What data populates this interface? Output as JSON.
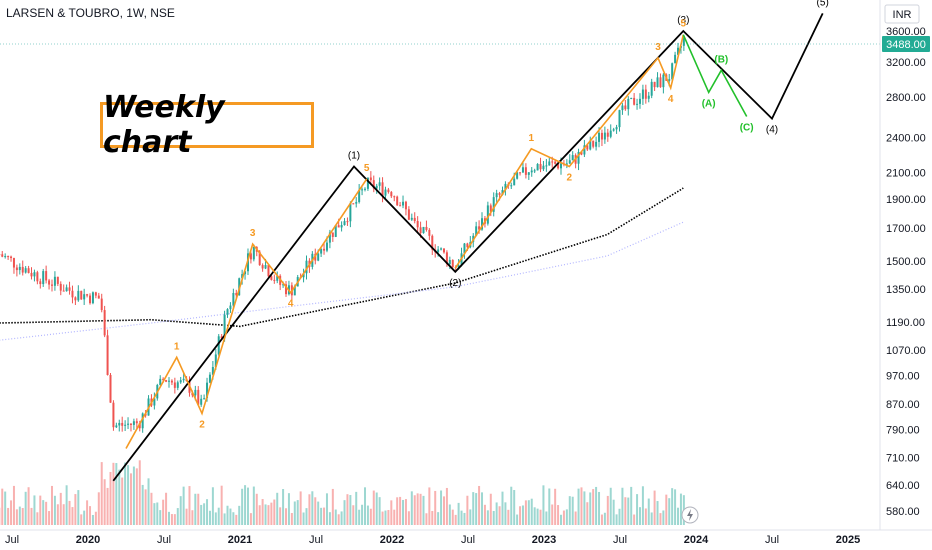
{
  "header": {
    "title": "LARSEN & TOUBRO, 1W, NSE"
  },
  "annotation": {
    "text": "Weekly chart"
  },
  "price_axis": {
    "currency_badge": "INR",
    "current_price_label": "3488.00",
    "tick_labels": [
      "3600.00",
      "3200.00",
      "2800.00",
      "2400.00",
      "2100.00",
      "1900.00",
      "1700.00",
      "1500.00",
      "1350.00",
      "1190.00",
      "1070.00",
      "970.00",
      "870.00",
      "790.00",
      "710.00",
      "640.00",
      "580.00"
    ]
  },
  "time_axis": {
    "tick_labels": [
      "Jul",
      "2020",
      "Jul",
      "2021",
      "Jul",
      "2022",
      "Jul",
      "2023",
      "Jul",
      "2024",
      "Jul",
      "2025"
    ]
  },
  "wave_labels": {
    "primary": [
      "(1)",
      "(2)",
      "(3)",
      "(4)",
      "(5)"
    ],
    "minor": [
      "1",
      "2",
      "3",
      "4",
      "5",
      "1",
      "2",
      "3",
      "4",
      "5"
    ],
    "corrective": [
      "(A)",
      "(B)",
      "(C)"
    ]
  },
  "colors": {
    "bull": "#26a69a",
    "bear": "#ef5350",
    "wave_primary": "#000000",
    "wave_minor": "#f59a23",
    "wave_corrective": "#22c02b",
    "ma_long": "#000000",
    "ma_slow": "#b2b5ff",
    "price_badge": "#22ab94"
  },
  "chart_data": {
    "type": "candlestick",
    "symbol": "LARSEN & TOUBRO",
    "interval": "1W",
    "exchange": "NSE",
    "scale": "log",
    "ylim": [
      560,
      3900
    ],
    "last_price": 3488.0,
    "price_anchors": [
      {
        "date": "2019-06",
        "price": 1540
      },
      {
        "date": "2019-09",
        "price": 1420
      },
      {
        "date": "2019-12",
        "price": 1330
      },
      {
        "date": "2020-02",
        "price": 1300
      },
      {
        "date": "2020-03",
        "price": 800
      },
      {
        "date": "2020-05",
        "price": 810
      },
      {
        "date": "2020-07",
        "price": 960
      },
      {
        "date": "2020-09",
        "price": 930
      },
      {
        "date": "2020-10",
        "price": 860
      },
      {
        "date": "2020-12",
        "price": 1250
      },
      {
        "date": "2021-02",
        "price": 1580
      },
      {
        "date": "2021-04",
        "price": 1380
      },
      {
        "date": "2021-05",
        "price": 1340
      },
      {
        "date": "2021-08",
        "price": 1650
      },
      {
        "date": "2021-10",
        "price": 1850
      },
      {
        "date": "2021-11",
        "price": 2010
      },
      {
        "date": "2022-01",
        "price": 1960
      },
      {
        "date": "2022-03",
        "price": 1700
      },
      {
        "date": "2022-06",
        "price": 1470
      },
      {
        "date": "2022-09",
        "price": 1880
      },
      {
        "date": "2022-12",
        "price": 2150
      },
      {
        "date": "2023-03",
        "price": 2180
      },
      {
        "date": "2023-05",
        "price": 2350
      },
      {
        "date": "2023-08",
        "price": 2750
      },
      {
        "date": "2023-10",
        "price": 2950
      },
      {
        "date": "2023-11",
        "price": 3050
      },
      {
        "date": "2023-12",
        "price": 3488
      }
    ],
    "moving_averages": [
      {
        "style": "dotted-black",
        "points": [
          {
            "date": "2019-06",
            "price": 1185
          },
          {
            "date": "2020-06",
            "price": 1200
          },
          {
            "date": "2021-01",
            "price": 1170
          },
          {
            "date": "2022-06",
            "price": 1380
          },
          {
            "date": "2023-06",
            "price": 1660
          },
          {
            "date": "2023-12",
            "price": 1980
          }
        ]
      },
      {
        "style": "dotted-lavender",
        "points": [
          {
            "date": "2019-06",
            "price": 1110
          },
          {
            "date": "2020-06",
            "price": 1185
          },
          {
            "date": "2021-06",
            "price": 1270
          },
          {
            "date": "2022-06",
            "price": 1360
          },
          {
            "date": "2023-06",
            "price": 1530
          },
          {
            "date": "2023-12",
            "price": 1740
          }
        ]
      }
    ],
    "elliott_waves": {
      "primary": [
        {
          "date": "2020-03",
          "price": 650,
          "label": ""
        },
        {
          "date": "2021-10",
          "price": 2150,
          "label": "(1)"
        },
        {
          "date": "2022-06",
          "price": 1440,
          "label": "(2)"
        },
        {
          "date": "2023-12",
          "price": 3600,
          "label": "(3)"
        },
        {
          "date": "2024-07",
          "price": 2580,
          "label": "(4)"
        },
        {
          "date": "2024-11",
          "price": 3850,
          "label": "(5)"
        }
      ],
      "minor_1": [
        {
          "date": "2020-04",
          "price": 735,
          "label": ""
        },
        {
          "date": "2020-08",
          "price": 1040,
          "label": "1"
        },
        {
          "date": "2020-10",
          "price": 840,
          "label": "2"
        },
        {
          "date": "2021-02",
          "price": 1600,
          "label": "3"
        },
        {
          "date": "2021-05",
          "price": 1330,
          "label": "4"
        },
        {
          "date": "2021-11",
          "price": 2050,
          "label": "5"
        }
      ],
      "minor_2": [
        {
          "date": "2022-06",
          "price": 1460,
          "label": ""
        },
        {
          "date": "2022-12",
          "price": 2300,
          "label": "1"
        },
        {
          "date": "2023-03",
          "price": 2150,
          "label": "2"
        },
        {
          "date": "2023-10",
          "price": 3250,
          "label": "3"
        },
        {
          "date": "2023-11",
          "price": 2900,
          "label": "4"
        },
        {
          "date": "2023-12",
          "price": 3550,
          "label": "5"
        }
      ],
      "corrective": [
        {
          "date": "2023-12",
          "price": 3550,
          "label": ""
        },
        {
          "date": "2024-02",
          "price": 2850,
          "label": "(A)"
        },
        {
          "date": "2024-03",
          "price": 3100,
          "label": "(B)"
        },
        {
          "date": "2024-05",
          "price": 2600,
          "label": "(C)"
        }
      ]
    }
  }
}
